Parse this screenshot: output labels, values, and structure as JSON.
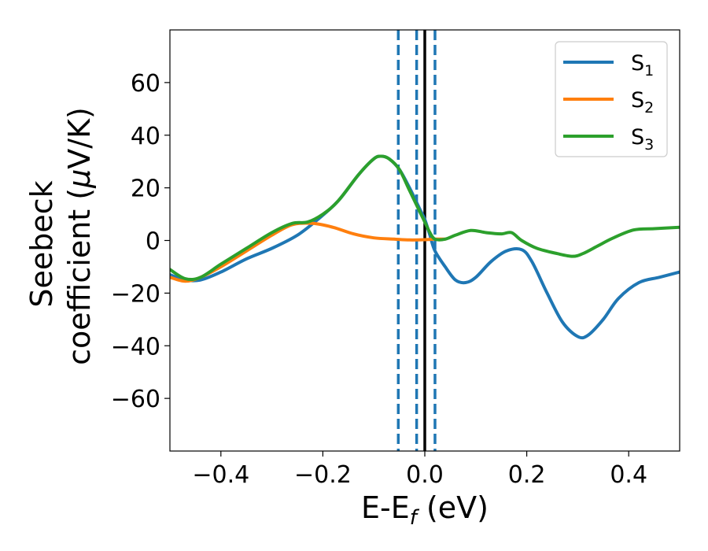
{
  "chart_data": {
    "type": "line",
    "title": "",
    "xlabel": {
      "main": "E-E",
      "sub": "f",
      "unit": " (eV)"
    },
    "ylabel": {
      "line1": "Seebeck",
      "line2": "coefficient  (",
      "mu": "μ",
      "unit": "V/K)"
    },
    "xlim": [
      -0.5,
      0.5
    ],
    "ylim": [
      -80,
      80
    ],
    "xticks": [
      -0.4,
      -0.2,
      0.0,
      0.2,
      0.4
    ],
    "xtick_labels": [
      "−0.4",
      "−0.2",
      "0.0",
      "0.2",
      "0.4"
    ],
    "yticks": [
      -60,
      -40,
      -20,
      0,
      20,
      40,
      60
    ],
    "ytick_labels": [
      "−60",
      "−40",
      "−20",
      "0",
      "20",
      "40",
      "60"
    ],
    "grid": false,
    "legend_position": "top-right",
    "vlines": [
      {
        "x": -0.052,
        "style": "dashed",
        "color": "#1f77b4"
      },
      {
        "x": -0.016,
        "style": "dashed",
        "color": "#1f77b4"
      },
      {
        "x": 0.0,
        "style": "solid",
        "color": "#000000"
      },
      {
        "x": 0.02,
        "style": "dashed",
        "color": "#1f77b4"
      }
    ],
    "series": [
      {
        "name": "S",
        "sub": "1",
        "color": "#1f77b4",
        "points": [
          [
            -0.5,
            -13
          ],
          [
            -0.47,
            -15
          ],
          [
            -0.44,
            -15
          ],
          [
            -0.4,
            -12
          ],
          [
            -0.35,
            -7
          ],
          [
            -0.3,
            -3
          ],
          [
            -0.25,
            2
          ],
          [
            -0.21,
            8
          ],
          [
            -0.17,
            15
          ],
          [
            -0.13,
            25
          ],
          [
            -0.1,
            31
          ],
          [
            -0.085,
            32
          ],
          [
            -0.07,
            31
          ],
          [
            -0.05,
            27
          ],
          [
            -0.03,
            20
          ],
          [
            -0.01,
            12
          ],
          [
            0.0,
            8
          ],
          [
            0.01,
            2
          ],
          [
            0.02,
            -4
          ],
          [
            0.04,
            -10
          ],
          [
            0.06,
            -15
          ],
          [
            0.08,
            -16
          ],
          [
            0.1,
            -14
          ],
          [
            0.13,
            -8
          ],
          [
            0.16,
            -4
          ],
          [
            0.19,
            -3.5
          ],
          [
            0.21,
            -8
          ],
          [
            0.24,
            -20
          ],
          [
            0.27,
            -31
          ],
          [
            0.3,
            -36.5
          ],
          [
            0.32,
            -36
          ],
          [
            0.35,
            -30
          ],
          [
            0.38,
            -22
          ],
          [
            0.42,
            -16
          ],
          [
            0.46,
            -14
          ],
          [
            0.5,
            -12
          ]
        ]
      },
      {
        "name": "S",
        "sub": "2",
        "color": "#ff7f0e",
        "points": [
          [
            -0.5,
            -14
          ],
          [
            -0.47,
            -15.5
          ],
          [
            -0.44,
            -14
          ],
          [
            -0.4,
            -10
          ],
          [
            -0.35,
            -4
          ],
          [
            -0.3,
            2
          ],
          [
            -0.26,
            6
          ],
          [
            -0.22,
            6.5
          ],
          [
            -0.18,
            5
          ],
          [
            -0.14,
            2.5
          ],
          [
            -0.1,
            1
          ],
          [
            -0.06,
            0.5
          ],
          [
            -0.03,
            0.2
          ],
          [
            0.0,
            0.3
          ],
          [
            0.02,
            0.5
          ],
          [
            0.04,
            0.5
          ]
        ]
      },
      {
        "name": "S",
        "sub": "3",
        "color": "#2ca02c",
        "points": [
          [
            -0.5,
            -11
          ],
          [
            -0.47,
            -14.5
          ],
          [
            -0.44,
            -14
          ],
          [
            -0.4,
            -9
          ],
          [
            -0.35,
            -3
          ],
          [
            -0.3,
            3
          ],
          [
            -0.26,
            6.5
          ],
          [
            -0.23,
            7
          ],
          [
            -0.2,
            10
          ],
          [
            -0.17,
            15
          ],
          [
            -0.13,
            25
          ],
          [
            -0.1,
            31
          ],
          [
            -0.085,
            32
          ],
          [
            -0.07,
            31
          ],
          [
            -0.05,
            27
          ],
          [
            -0.03,
            19
          ],
          [
            -0.01,
            11
          ],
          [
            0.0,
            7
          ],
          [
            0.01,
            3
          ],
          [
            0.02,
            0.5
          ],
          [
            0.04,
            0.5
          ],
          [
            0.06,
            2
          ],
          [
            0.09,
            3.8
          ],
          [
            0.12,
            3
          ],
          [
            0.15,
            2.5
          ],
          [
            0.17,
            3
          ],
          [
            0.19,
            0
          ],
          [
            0.22,
            -3
          ],
          [
            0.26,
            -5
          ],
          [
            0.29,
            -6
          ],
          [
            0.31,
            -5
          ],
          [
            0.34,
            -2
          ],
          [
            0.37,
            1
          ],
          [
            0.41,
            4
          ],
          [
            0.45,
            4.5
          ],
          [
            0.5,
            5
          ]
        ]
      }
    ]
  }
}
